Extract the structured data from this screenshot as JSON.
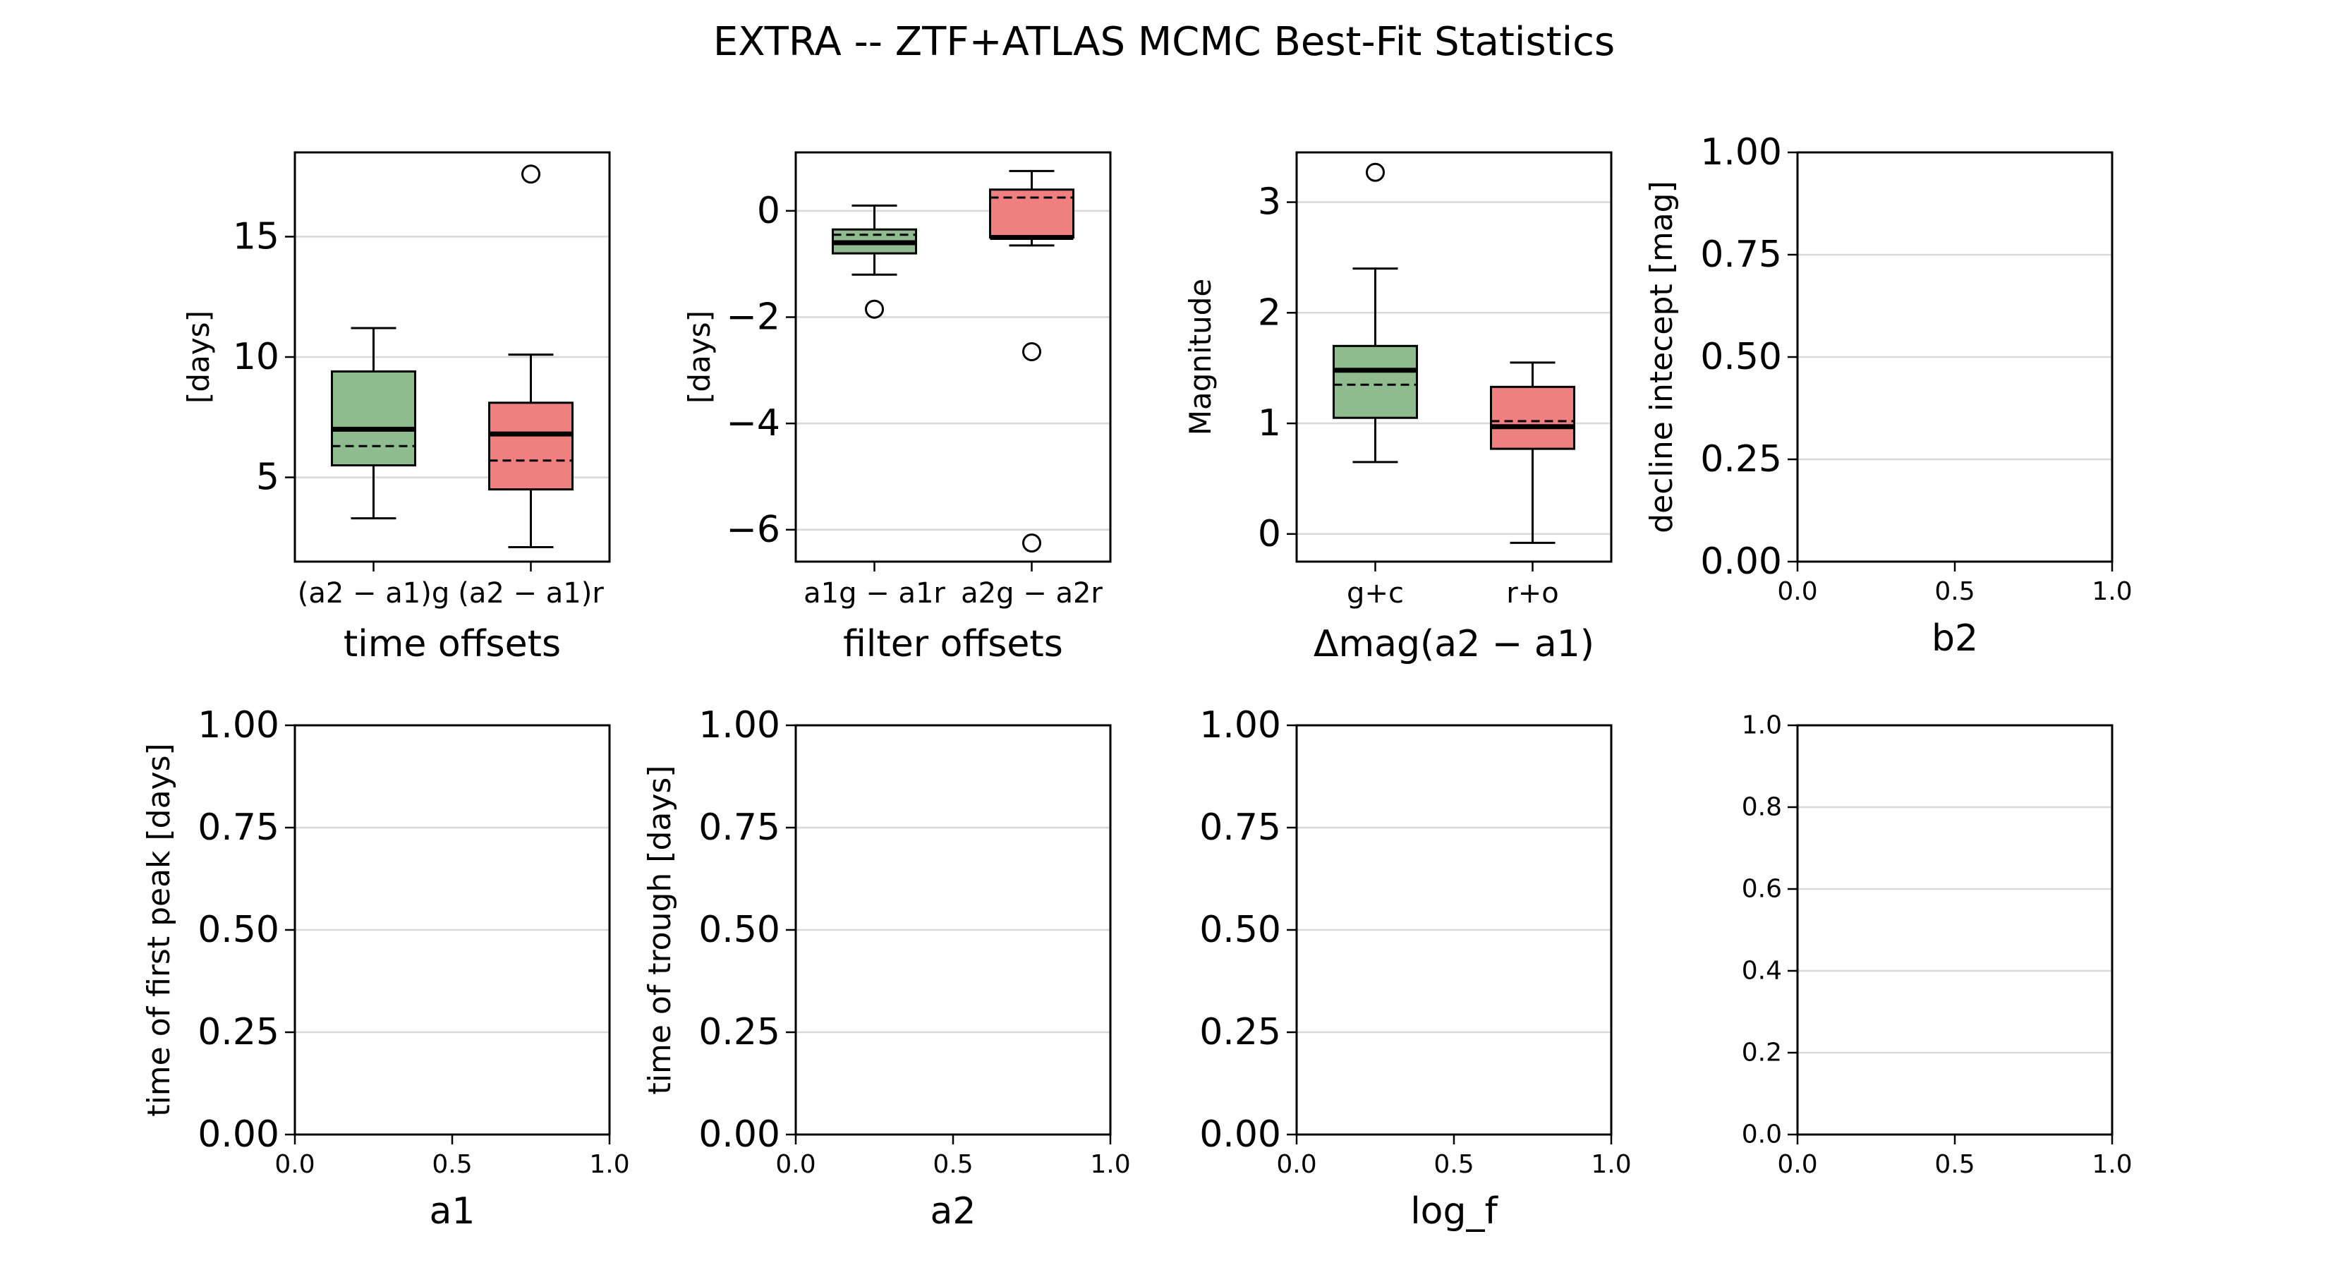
{
  "title": "EXTRA -- ZTF+ATLAS MCMC Best-Fit Statistics",
  "colors": {
    "g": "#8fbc8f",
    "r": "#f08080",
    "grid": "#d8d8d8"
  },
  "chart_data": [
    {
      "type": "box",
      "xlabel": "time offsets",
      "ylabel": "[days]",
      "ylim": [
        1.5,
        18.5
      ],
      "yticks": [
        5,
        10,
        15
      ],
      "categories": [
        "(a2 − a1)g",
        "(a2 − a1)r"
      ],
      "boxes": [
        {
          "name": "(a2 − a1)g",
          "color": "#8fbc8f",
          "whisker_low": 3.3,
          "q1": 5.5,
          "median": 7.0,
          "mean": 6.3,
          "q3": 9.4,
          "whisker_high": 11.2,
          "outliers": []
        },
        {
          "name": "(a2 − a1)r",
          "color": "#f08080",
          "whisker_low": 2.1,
          "q1": 4.5,
          "median": 6.8,
          "mean": 5.7,
          "q3": 8.1,
          "whisker_high": 10.1,
          "outliers": [
            17.6
          ]
        }
      ]
    },
    {
      "type": "box",
      "xlabel": "filter offsets",
      "ylabel": "[days]",
      "ylim": [
        -6.6,
        1.1
      ],
      "yticks": [
        0,
        -2,
        -4,
        -6
      ],
      "categories": [
        "a1g − a1r",
        "a2g − a2r"
      ],
      "boxes": [
        {
          "name": "a1g − a1r",
          "color": "#8fbc8f",
          "whisker_low": -1.2,
          "q1": -0.8,
          "median": -0.6,
          "mean": -0.45,
          "q3": -0.35,
          "whisker_high": 0.1,
          "outliers": [
            -1.85
          ]
        },
        {
          "name": "a2g − a2r",
          "color": "#f08080",
          "whisker_low": -0.65,
          "q1": -0.5,
          "median": -0.5,
          "mean": 0.25,
          "q3": 0.4,
          "whisker_high": 0.75,
          "outliers": [
            -2.65,
            -6.25
          ]
        }
      ]
    },
    {
      "type": "box",
      "xlabel": "Δmag(a2 − a1)",
      "ylabel": "Magnitude",
      "ylim": [
        -0.25,
        3.45
      ],
      "yticks": [
        0,
        1,
        2,
        3
      ],
      "categories": [
        "g+c",
        "r+o"
      ],
      "boxes": [
        {
          "name": "g+c",
          "color": "#8fbc8f",
          "whisker_low": 0.65,
          "q1": 1.05,
          "median": 1.48,
          "mean": 1.35,
          "q3": 1.7,
          "whisker_high": 2.4,
          "outliers": [
            3.27
          ]
        },
        {
          "name": "r+o",
          "color": "#f08080",
          "whisker_low": -0.08,
          "q1": 0.77,
          "median": 0.97,
          "mean": 1.02,
          "q3": 1.33,
          "whisker_high": 1.55,
          "outliers": []
        }
      ]
    },
    {
      "type": "empty",
      "xlabel": "b2",
      "ylabel": "decline intecept [mag]",
      "ylim": [
        0,
        1
      ],
      "yticks": [
        "0.00",
        "0.25",
        "0.50",
        "0.75",
        "1.00"
      ],
      "xticks": [
        "0.0",
        "0.5",
        "1.0"
      ]
    },
    {
      "type": "empty",
      "xlabel": "a1",
      "ylabel": "time of first peak [days]",
      "ylim": [
        0,
        1
      ],
      "yticks": [
        "0.00",
        "0.25",
        "0.50",
        "0.75",
        "1.00"
      ],
      "xticks": [
        "0.0",
        "0.5",
        "1.0"
      ]
    },
    {
      "type": "empty",
      "xlabel": "a2",
      "ylabel": "time of trough [days]",
      "ylim": [
        0,
        1
      ],
      "yticks": [
        "0.00",
        "0.25",
        "0.50",
        "0.75",
        "1.00"
      ],
      "xticks": [
        "0.0",
        "0.5",
        "1.0"
      ]
    },
    {
      "type": "empty",
      "xlabel": "log_f",
      "ylabel": "",
      "ylim": [
        0,
        1
      ],
      "yticks": [
        "0.00",
        "0.25",
        "0.50",
        "0.75",
        "1.00"
      ],
      "xticks": [
        "0.0",
        "0.5",
        "1.0"
      ]
    },
    {
      "type": "empty",
      "xlabel": "",
      "ylabel": "",
      "ylim": [
        0,
        1
      ],
      "yticks": [
        "0.0",
        "0.2",
        "0.4",
        "0.6",
        "0.8",
        "1.0"
      ],
      "xticks": [
        "0.0",
        "0.5",
        "1.0"
      ]
    }
  ]
}
